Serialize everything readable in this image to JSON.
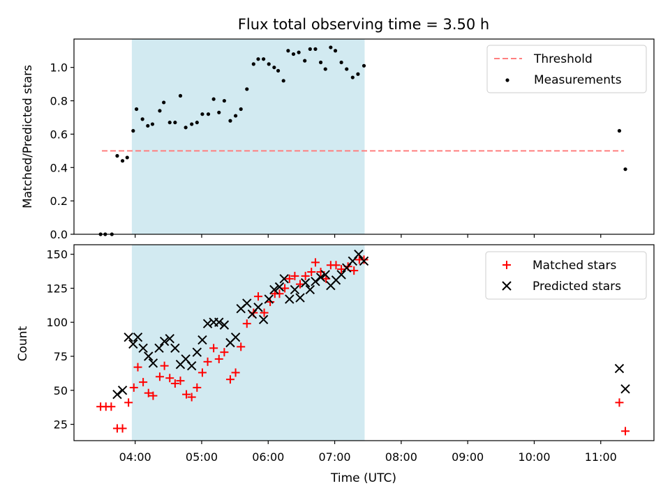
{
  "chart_data": [
    {
      "type": "scatter",
      "title": "Flux total observing time = 3.50 h",
      "xlabel": "",
      "ylabel": "Matched/Predicted stars",
      "ylim": [
        0,
        1.17
      ],
      "yticks": [
        0.0,
        0.2,
        0.4,
        0.6,
        0.8,
        1.0
      ],
      "ytick_labels": [
        "0.0",
        "0.2",
        "0.4",
        "0.6",
        "0.8",
        "1.0"
      ],
      "xlim_hours": [
        3.08,
        11.8
      ],
      "shaded_interval_hours": [
        3.95,
        7.45
      ],
      "shade_color": "#add8e6",
      "threshold": {
        "name": "Threshold",
        "value": 0.5,
        "x_range_hours": [
          3.5,
          11.35
        ],
        "color": "#ff7f7f"
      },
      "legend": [
        "Threshold",
        "Measurements"
      ],
      "legend_position": "upper right",
      "series": [
        {
          "name": "Measurements",
          "color": "#000000",
          "points": [
            [
              3.48,
              0.0
            ],
            [
              3.55,
              0.0
            ],
            [
              3.65,
              0.0
            ],
            [
              3.73,
              0.47
            ],
            [
              3.81,
              0.44
            ],
            [
              3.88,
              0.46
            ],
            [
              3.97,
              0.62
            ],
            [
              4.02,
              0.75
            ],
            [
              4.11,
              0.69
            ],
            [
              4.19,
              0.65
            ],
            [
              4.26,
              0.66
            ],
            [
              4.37,
              0.74
            ],
            [
              4.43,
              0.79
            ],
            [
              4.52,
              0.67
            ],
            [
              4.6,
              0.67
            ],
            [
              4.68,
              0.83
            ],
            [
              4.76,
              0.64
            ],
            [
              4.85,
              0.66
            ],
            [
              4.93,
              0.67
            ],
            [
              5.01,
              0.72
            ],
            [
              5.1,
              0.72
            ],
            [
              5.18,
              0.81
            ],
            [
              5.26,
              0.73
            ],
            [
              5.34,
              0.8
            ],
            [
              5.43,
              0.68
            ],
            [
              5.51,
              0.71
            ],
            [
              5.59,
              0.75
            ],
            [
              5.68,
              0.87
            ],
            [
              5.78,
              1.02
            ],
            [
              5.85,
              1.05
            ],
            [
              5.93,
              1.05
            ],
            [
              6.01,
              1.02
            ],
            [
              6.09,
              1.0
            ],
            [
              6.15,
              0.98
            ],
            [
              6.23,
              0.92
            ],
            [
              6.3,
              1.1
            ],
            [
              6.38,
              1.08
            ],
            [
              6.46,
              1.09
            ],
            [
              6.55,
              1.04
            ],
            [
              6.63,
              1.11
            ],
            [
              6.71,
              1.11
            ],
            [
              6.79,
              1.03
            ],
            [
              6.86,
              0.99
            ],
            [
              6.94,
              1.12
            ],
            [
              7.01,
              1.1
            ],
            [
              7.1,
              1.03
            ],
            [
              7.18,
              0.99
            ],
            [
              7.27,
              0.94
            ],
            [
              7.35,
              0.96
            ],
            [
              7.44,
              1.01
            ],
            [
              11.28,
              0.62
            ],
            [
              11.37,
              0.39
            ]
          ]
        }
      ]
    },
    {
      "type": "scatter",
      "title": "",
      "xlabel": "Time (UTC)",
      "ylabel": "Count",
      "ylim": [
        13,
        157
      ],
      "yticks": [
        25,
        50,
        75,
        100,
        125,
        150
      ],
      "ytick_labels": [
        "25",
        "50",
        "75",
        "100",
        "125",
        "150"
      ],
      "xlim_hours": [
        3.08,
        11.8
      ],
      "xticks_hours": [
        4,
        5,
        6,
        7,
        8,
        9,
        10,
        11
      ],
      "xtick_labels": [
        "04:00",
        "05:00",
        "06:00",
        "07:00",
        "08:00",
        "09:00",
        "10:00",
        "11:00"
      ],
      "shaded_interval_hours": [
        3.95,
        7.45
      ],
      "shade_color": "#add8e6",
      "legend": [
        "Matched stars",
        "Predicted stars"
      ],
      "legend_position": "upper right",
      "series": [
        {
          "name": "Matched stars",
          "marker": "+",
          "color": "#ff0000",
          "points": [
            [
              3.48,
              38
            ],
            [
              3.56,
              38
            ],
            [
              3.64,
              38
            ],
            [
              3.73,
              22
            ],
            [
              3.81,
              22
            ],
            [
              3.9,
              41
            ],
            [
              3.98,
              52
            ],
            [
              4.04,
              67
            ],
            [
              4.12,
              56
            ],
            [
              4.2,
              48
            ],
            [
              4.27,
              46
            ],
            [
              4.37,
              60
            ],
            [
              4.44,
              68
            ],
            [
              4.52,
              59
            ],
            [
              4.6,
              55
            ],
            [
              4.68,
              57
            ],
            [
              4.77,
              47
            ],
            [
              4.85,
              45
            ],
            [
              4.93,
              52
            ],
            [
              5.01,
              63
            ],
            [
              5.09,
              71
            ],
            [
              5.18,
              81
            ],
            [
              5.26,
              73
            ],
            [
              5.34,
              78
            ],
            [
              5.43,
              58
            ],
            [
              5.51,
              63
            ],
            [
              5.59,
              82
            ],
            [
              5.68,
              99
            ],
            [
              5.78,
              107
            ],
            [
              5.85,
              119
            ],
            [
              5.94,
              107
            ],
            [
              6.03,
              115
            ],
            [
              6.1,
              121
            ],
            [
              6.17,
              121
            ],
            [
              6.25,
              125
            ],
            [
              6.32,
              132
            ],
            [
              6.4,
              134
            ],
            [
              6.48,
              128
            ],
            [
              6.56,
              134
            ],
            [
              6.65,
              137
            ],
            [
              6.71,
              144
            ],
            [
              6.79,
              137
            ],
            [
              6.87,
              132
            ],
            [
              6.94,
              142
            ],
            [
              7.02,
              142
            ],
            [
              7.1,
              139
            ],
            [
              7.2,
              141
            ],
            [
              7.29,
              138
            ],
            [
              7.37,
              146
            ],
            [
              7.44,
              146
            ],
            [
              11.28,
              41
            ],
            [
              11.37,
              20
            ]
          ]
        },
        {
          "name": "Predicted stars",
          "marker": "x",
          "color": "#000000",
          "points": [
            [
              3.73,
              47
            ],
            [
              3.81,
              50
            ],
            [
              3.9,
              89
            ],
            [
              3.97,
              84
            ],
            [
              4.04,
              89
            ],
            [
              4.12,
              81
            ],
            [
              4.2,
              75
            ],
            [
              4.27,
              70
            ],
            [
              4.36,
              81
            ],
            [
              4.44,
              86
            ],
            [
              4.52,
              88
            ],
            [
              4.6,
              81
            ],
            [
              4.68,
              69
            ],
            [
              4.76,
              73
            ],
            [
              4.85,
              68
            ],
            [
              4.93,
              78
            ],
            [
              5.01,
              87
            ],
            [
              5.09,
              99
            ],
            [
              5.18,
              100
            ],
            [
              5.26,
              100
            ],
            [
              5.34,
              98
            ],
            [
              5.43,
              85
            ],
            [
              5.51,
              89
            ],
            [
              5.59,
              110
            ],
            [
              5.68,
              114
            ],
            [
              5.76,
              106
            ],
            [
              5.85,
              111
            ],
            [
              5.93,
              102
            ],
            [
              6.01,
              117
            ],
            [
              6.09,
              124
            ],
            [
              6.17,
              126
            ],
            [
              6.24,
              132
            ],
            [
              6.32,
              117
            ],
            [
              6.4,
              124
            ],
            [
              6.48,
              118
            ],
            [
              6.56,
              129
            ],
            [
              6.63,
              124
            ],
            [
              6.71,
              130
            ],
            [
              6.79,
              133
            ],
            [
              6.86,
              135
            ],
            [
              6.94,
              127
            ],
            [
              7.02,
              131
            ],
            [
              7.1,
              135
            ],
            [
              7.18,
              140
            ],
            [
              7.27,
              145
            ],
            [
              7.36,
              150
            ],
            [
              7.44,
              145
            ],
            [
              11.28,
              66
            ],
            [
              11.37,
              51
            ]
          ]
        }
      ]
    }
  ]
}
